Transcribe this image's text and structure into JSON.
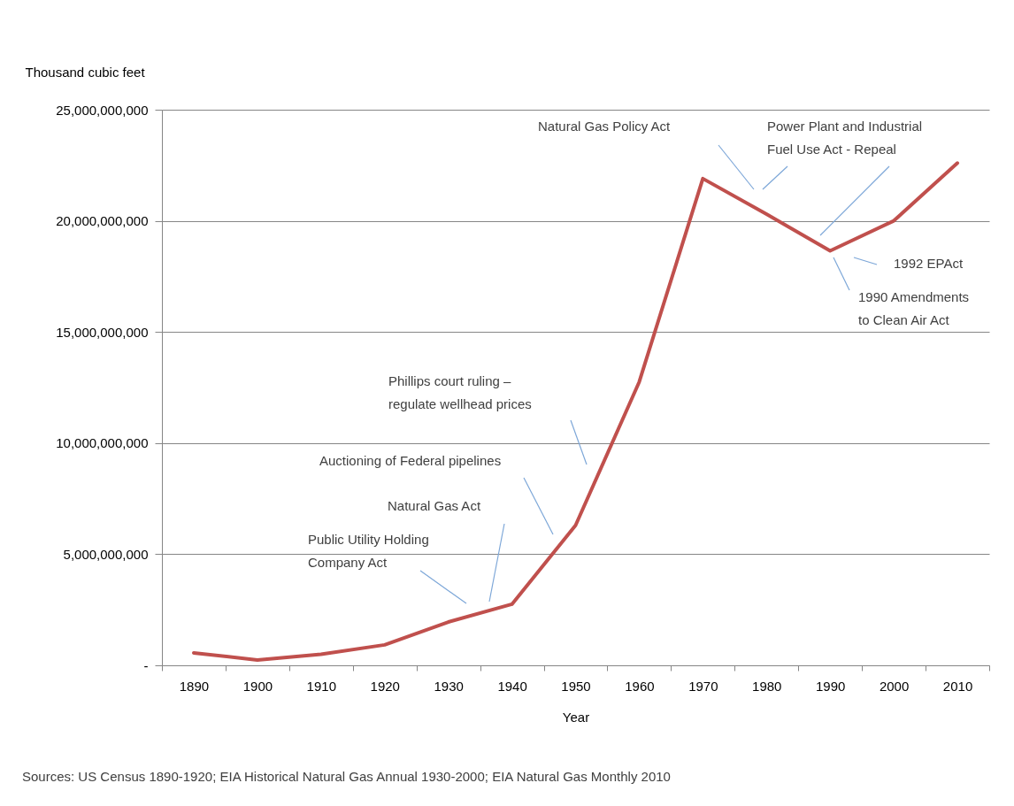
{
  "chart_data": {
    "type": "line",
    "xlabel": "Year",
    "ylabel": "Thousand cubic feet",
    "categories": [
      "1890",
      "1900",
      "1910",
      "1920",
      "1930",
      "1940",
      "1950",
      "1960",
      "1970",
      "1980",
      "1990",
      "2000",
      "2010"
    ],
    "series": [
      {
        "color": "#c0504d",
        "values": [
          560000000,
          240000000,
          500000000,
          920000000,
          1950000000,
          2750000000,
          6300000000,
          12750000000,
          21900000000,
          20300000000,
          18650000000,
          20000000000,
          22600000000
        ]
      }
    ],
    "ylim": [
      0,
      25000000000
    ],
    "yticks": [
      {
        "value": 0,
        "label": "-"
      },
      {
        "value": 5000000000,
        "label": "5,000,000,000"
      },
      {
        "value": 10000000000,
        "label": "10,000,000,000"
      },
      {
        "value": 15000000000,
        "label": "15,000,000,000"
      },
      {
        "value": 20000000000,
        "label": "20,000,000,000"
      },
      {
        "value": 25000000000,
        "label": "25,000,000,000"
      }
    ],
    "grid": "y",
    "line_style": "solid",
    "marker": "none",
    "annotations": [
      "Phillips court ruling –\nregulate wellhead prices",
      "Auctioning of Federal pipelines",
      "Natural Gas Act",
      "Public Utility Holding\nCompany Act",
      "Natural Gas Policy Act",
      "Power Plant and Industrial\nFuel Use Act - Repeal",
      "1992 EPAct",
      "1990 Amendments\nto Clean Air Act",
      "Sources: US Census 1890-1920; EIA Historical Natural Gas Annual 1930-2000; EIA Natural Gas Monthly 2010"
    ]
  }
}
